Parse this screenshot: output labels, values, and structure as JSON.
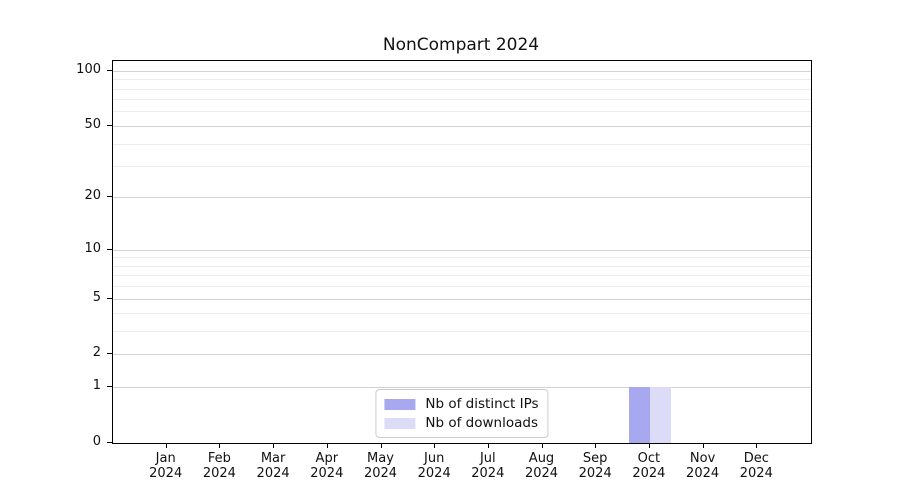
{
  "chart_data": {
    "type": "bar",
    "title": "NonCompart 2024",
    "xlabel": "",
    "ylabel": "",
    "yscale": "log1p",
    "ylim": [
      0,
      113
    ],
    "yticks": [
      0,
      1,
      2,
      5,
      10,
      20,
      50,
      100
    ],
    "y_minor_ticks": [
      3,
      4,
      6,
      7,
      8,
      9,
      30,
      40,
      60,
      70,
      80,
      90
    ],
    "grid": "horizontal",
    "categories": [
      "Jan",
      "Feb",
      "Mar",
      "Apr",
      "May",
      "Jun",
      "Jul",
      "Aug",
      "Sep",
      "Oct",
      "Nov",
      "Dec"
    ],
    "year": "2024",
    "series": [
      {
        "name": "Nb of distinct IPs",
        "color": "#a8a8f0",
        "values": [
          0,
          0,
          0,
          0,
          0,
          0,
          0,
          0,
          0,
          1,
          0,
          0
        ]
      },
      {
        "name": "Nb of downloads",
        "color": "#dcdcf8",
        "values": [
          0,
          0,
          0,
          0,
          0,
          0,
          0,
          0,
          0,
          1,
          0,
          0
        ]
      }
    ],
    "legend_position": "lower center (inside plot)"
  }
}
